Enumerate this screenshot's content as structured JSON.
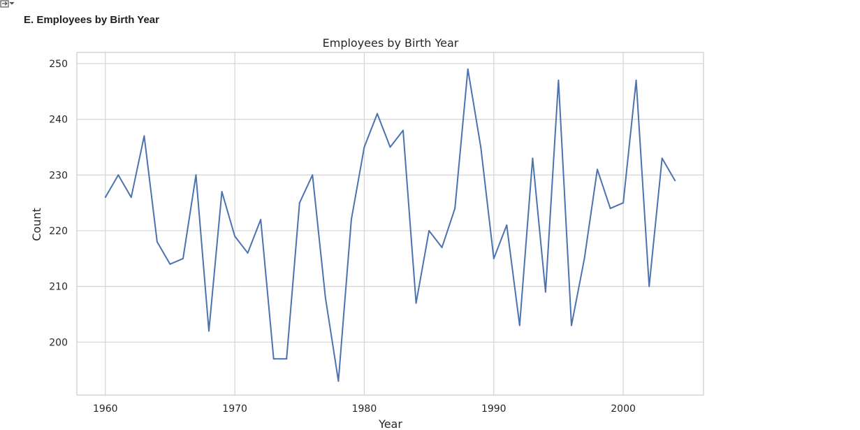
{
  "output_icon": "output-toggle-icon",
  "section_title": "E. Employees by Birth Year",
  "chart_data": {
    "type": "line",
    "title": "Employees by Birth Year",
    "xlabel": "Year",
    "ylabel": "Count",
    "xlim": [
      1957.8,
      2006.2
    ],
    "ylim": [
      190.5,
      252
    ],
    "xticks": [
      1960,
      1970,
      1980,
      1990,
      2000
    ],
    "yticks": [
      200,
      210,
      220,
      230,
      240,
      250
    ],
    "grid": true,
    "line_color": "#4c72b0",
    "x": [
      1960,
      1961,
      1962,
      1963,
      1964,
      1965,
      1966,
      1967,
      1968,
      1969,
      1970,
      1971,
      1972,
      1973,
      1974,
      1975,
      1976,
      1977,
      1978,
      1979,
      1980,
      1981,
      1982,
      1983,
      1984,
      1985,
      1986,
      1987,
      1988,
      1989,
      1990,
      1991,
      1992,
      1993,
      1994,
      1995,
      1996,
      1997,
      1998,
      1999,
      2000,
      2001,
      2002,
      2003,
      2004
    ],
    "values": [
      226,
      230,
      226,
      237,
      218,
      214,
      215,
      230,
      202,
      227,
      219,
      216,
      222,
      197,
      197,
      225,
      230,
      208,
      193,
      222,
      235,
      241,
      235,
      238,
      207,
      220,
      217,
      224,
      249,
      235,
      215,
      221,
      203,
      233,
      209,
      247,
      203,
      215,
      231,
      224,
      225,
      247,
      210,
      233,
      229
    ]
  }
}
